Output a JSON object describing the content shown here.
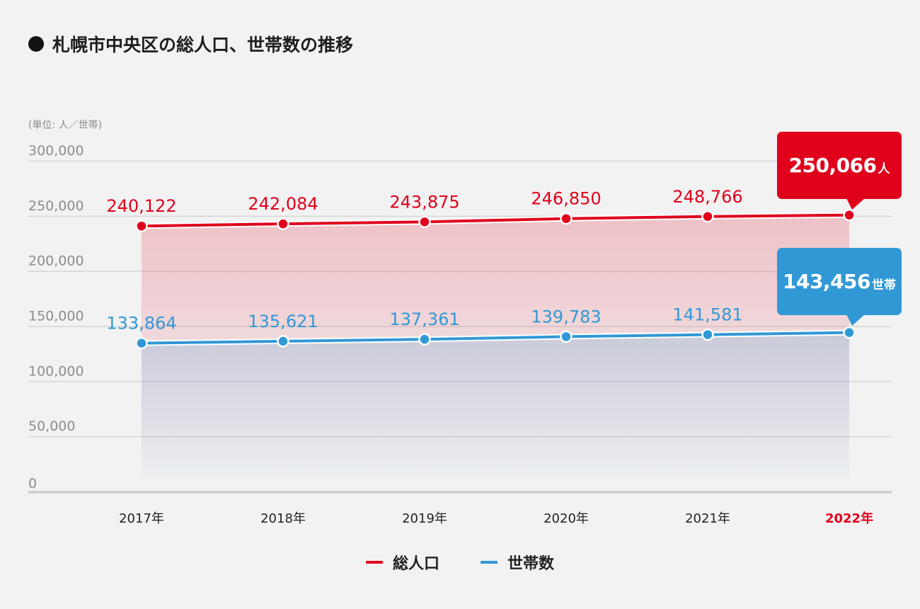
{
  "title": "札幌市中央区の総人口、世帯数の推移",
  "unit_label": "(単位: 人／世帯)",
  "colors": {
    "population": "#e0001b",
    "households": "#3198d6",
    "highlight_year": "#e0001b"
  },
  "legend": {
    "population": "総人口",
    "households": "世帯数"
  },
  "callouts": {
    "population": {
      "value": "250,066",
      "suffix": "人"
    },
    "households": {
      "value": "143,456",
      "suffix": "世帯"
    }
  },
  "chart_data": {
    "type": "line",
    "title": "札幌市中央区の総人口、世帯数の推移",
    "categories": [
      "2017年",
      "2018年",
      "2019年",
      "2020年",
      "2021年",
      "2022年"
    ],
    "highlight_category": "2022年",
    "ylim": [
      0,
      300000
    ],
    "yticks": [
      "0",
      "50,000",
      "100,000",
      "150,000",
      "200,000",
      "250,000",
      "300,000"
    ],
    "ytick_values": [
      0,
      50000,
      100000,
      150000,
      200000,
      250000,
      300000
    ],
    "grid": true,
    "area_fill": true,
    "legend_position": "bottom",
    "series": [
      {
        "name": "総人口",
        "key": "population",
        "values": [
          240122,
          242084,
          243875,
          246850,
          248766,
          250066
        ],
        "labels": [
          "240,122",
          "242,084",
          "243,875",
          "246,850",
          "248,766",
          "250,066"
        ]
      },
      {
        "name": "世帯数",
        "key": "households",
        "values": [
          133864,
          135621,
          137361,
          139783,
          141581,
          143456
        ],
        "labels": [
          "133,864",
          "135,621",
          "137,361",
          "139,783",
          "141,581",
          "143,456"
        ]
      }
    ]
  }
}
